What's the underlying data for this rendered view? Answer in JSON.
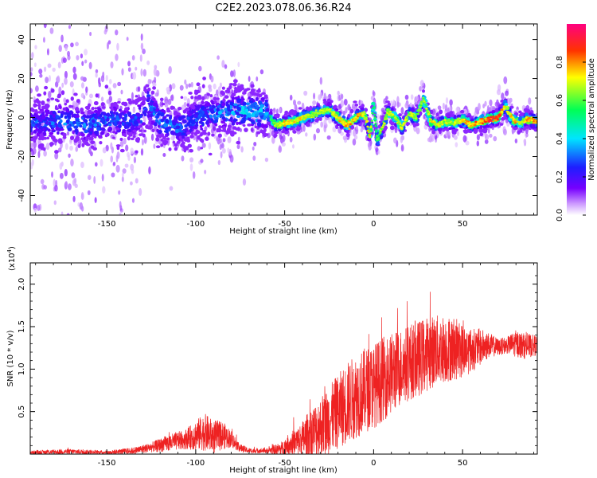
{
  "title": "C2E2.2023.078.06.36.R24",
  "chart_data": [
    {
      "type": "heatmap",
      "xlabel": "Height of straight line (km)",
      "ylabel": "Frequency (Hz)",
      "xlim": [
        -193,
        92
      ],
      "ylim": [
        -50,
        48
      ],
      "xticks": [
        -150,
        -100,
        -50,
        0,
        50
      ],
      "xtick_labels": [
        "-150",
        "-100",
        "-50",
        "0",
        "50"
      ],
      "yticks": [
        -40,
        -20,
        0,
        20,
        40
      ],
      "ytick_labels": [
        "-40",
        "-20",
        "0",
        "20",
        "40"
      ],
      "colorbar": {
        "label": "Normalized spectral amplitude",
        "range": [
          0,
          1
        ],
        "ticks": [
          0.0,
          0.2,
          0.4,
          0.6,
          0.8
        ],
        "tick_labels": [
          "0.0",
          "0.2",
          "0.4",
          "0.6",
          "0.8"
        ],
        "colors": [
          "#ffffff",
          "#7700ff",
          "#1e1eff",
          "#00ffff",
          "#00ff66",
          "#ffff00",
          "#ff0000",
          "#ff0080"
        ]
      },
      "ridge": {
        "x": [
          -193,
          -175,
          -160,
          -150,
          -140,
          -130,
          -127,
          -120,
          -110,
          -100,
          -90,
          -80,
          -70,
          -60,
          -55,
          -50,
          -45,
          -40,
          -35,
          -30,
          -25,
          -20,
          -15,
          -10,
          -5,
          -2,
          0,
          2,
          5,
          8,
          12,
          16,
          20,
          24,
          28,
          32,
          36,
          40,
          45,
          50,
          55,
          60,
          65,
          70,
          74,
          78,
          82,
          86,
          92
        ],
        "y": [
          -3,
          -2,
          -4,
          -1,
          -2,
          0,
          8,
          -2,
          -6,
          0,
          2,
          3,
          3,
          2,
          -4,
          -3,
          -2,
          0,
          1,
          3,
          4,
          0,
          -4,
          0,
          2,
          -10,
          8,
          -12,
          -5,
          3,
          0,
          -5,
          2,
          0,
          10,
          -2,
          -4,
          -2,
          -3,
          -1,
          -4,
          -2,
          -1,
          0,
          6,
          -1,
          -3,
          -1,
          -2
        ],
        "amplitude": [
          0.3,
          0.35,
          0.35,
          0.35,
          0.3,
          0.3,
          0.35,
          0.35,
          0.35,
          0.35,
          0.35,
          0.4,
          0.45,
          0.45,
          0.7,
          0.75,
          0.75,
          0.75,
          0.7,
          0.7,
          0.7,
          0.75,
          0.8,
          0.8,
          0.75,
          0.75,
          0.6,
          0.6,
          0.7,
          0.7,
          0.7,
          0.7,
          0.7,
          0.7,
          0.65,
          0.75,
          0.7,
          0.7,
          0.7,
          0.8,
          0.8,
          0.85,
          0.9,
          0.95,
          0.7,
          0.8,
          0.75,
          0.8,
          0.85
        ]
      }
    },
    {
      "type": "line",
      "xlabel": "Height of straight line (km)",
      "ylabel": "SNR (10 * v/v)",
      "yscale_label": "(x10",
      "yscale_exponent": "4",
      "yscale_close": ")",
      "xlim": [
        -193,
        92
      ],
      "ylim": [
        0,
        2.25
      ],
      "xticks": [
        -150,
        -100,
        -50,
        0,
        50
      ],
      "xtick_labels": [
        "-150",
        "-100",
        "-50",
        "0",
        "50"
      ],
      "yticks": [
        0.5,
        1.0,
        1.5,
        2.0
      ],
      "ytick_labels": [
        "0.5",
        "1.0",
        "1.5",
        "2.0"
      ],
      "color": "#ee2222",
      "envelope": {
        "x": [
          -193,
          -170,
          -150,
          -135,
          -125,
          -115,
          -105,
          -100,
          -95,
          -90,
          -85,
          -80,
          -75,
          -70,
          -60,
          -52,
          -48,
          -42,
          -38,
          -35,
          -30,
          -25,
          -20,
          -15,
          -10,
          -5,
          0,
          5,
          10,
          15,
          20,
          25,
          30,
          35,
          40,
          45,
          50,
          55,
          60,
          65,
          70,
          75,
          80,
          85,
          92
        ],
        "mean": [
          0.02,
          0.03,
          0.02,
          0.04,
          0.08,
          0.13,
          0.18,
          0.22,
          0.26,
          0.2,
          0.22,
          0.18,
          0.07,
          0.04,
          0.04,
          0.06,
          0.12,
          0.15,
          0.2,
          0.25,
          0.32,
          0.4,
          0.5,
          0.6,
          0.68,
          0.75,
          0.8,
          0.88,
          0.95,
          1.02,
          1.08,
          1.12,
          1.18,
          1.22,
          1.24,
          1.24,
          1.22,
          1.22,
          1.26,
          1.28,
          1.26,
          1.28,
          1.3,
          1.27,
          1.28
        ],
        "spread": [
          0.02,
          0.03,
          0.02,
          0.04,
          0.06,
          0.1,
          0.12,
          0.18,
          0.22,
          0.2,
          0.17,
          0.1,
          0.05,
          0.03,
          0.03,
          0.08,
          0.12,
          0.18,
          0.26,
          0.3,
          0.36,
          0.4,
          0.44,
          0.48,
          0.5,
          0.5,
          0.5,
          0.5,
          0.48,
          0.46,
          0.45,
          0.45,
          0.44,
          0.42,
          0.4,
          0.38,
          0.32,
          0.26,
          0.22,
          0.15,
          0.1,
          0.1,
          0.16,
          0.15,
          0.12
        ]
      }
    }
  ]
}
